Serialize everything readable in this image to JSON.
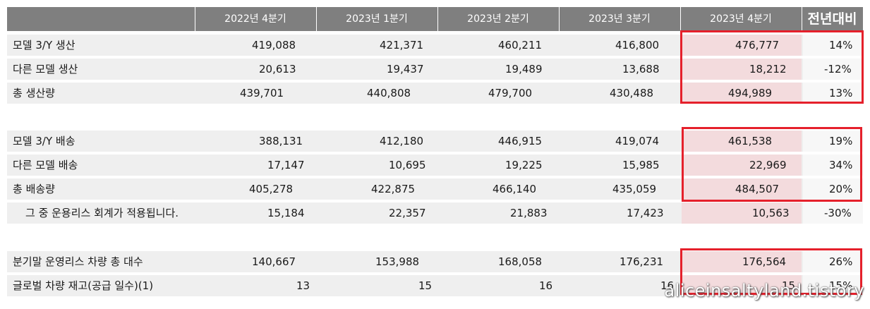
{
  "header": {
    "columns": [
      "2022년 4분기",
      "2023년 1분기",
      "2023년 2분기",
      "2023년 3분기",
      "2023년 4분기"
    ],
    "yoy": "전년대비"
  },
  "groups": [
    {
      "rows": [
        {
          "label": "모델 3/Y 생산",
          "values": [
            "419,088",
            "421,371",
            "460,211",
            "416,800",
            "476,777"
          ],
          "yoy": "14%"
        },
        {
          "label": "다른 모델 생산",
          "values": [
            "20,613",
            "19,437",
            "19,489",
            "13,688",
            "18,212"
          ],
          "yoy": "-12%"
        },
        {
          "label": "총 생산량",
          "values": [
            "439,701",
            "440,808",
            "479,700",
            "430,488",
            "494,989"
          ],
          "yoy": "13%"
        }
      ]
    },
    {
      "rows": [
        {
          "label": "모델 3/Y 배송",
          "values": [
            "388,131",
            "412,180",
            "446,915",
            "419,074",
            "461,538"
          ],
          "yoy": "19%"
        },
        {
          "label": "다른 모델 배송",
          "values": [
            "17,147",
            "10,695",
            "19,225",
            "15,985",
            "22,969"
          ],
          "yoy": "34%"
        },
        {
          "label": "총 배송량",
          "values": [
            "405,278",
            "422,875",
            "466,140",
            "435,059",
            "484,507"
          ],
          "yoy": "20%"
        },
        {
          "label": "그 중 운용리스 회계가 적용됩니다.",
          "values": [
            "15,184",
            "22,357",
            "21,883",
            "17,423",
            "10,563"
          ],
          "yoy": "-30%"
        }
      ]
    },
    {
      "rows": [
        {
          "label": "분기말 운영리스 차량 총 대수",
          "values": [
            "140,667",
            "153,988",
            "168,058",
            "176,231",
            "176,564"
          ],
          "yoy": "26%"
        },
        {
          "label": "글로벌 차량 재고(공급 일수)(1)",
          "values": [
            "13",
            "15",
            "16",
            "16",
            "15"
          ],
          "yoy": "15%"
        }
      ]
    }
  ],
  "watermark": "aliceinsaltyland.tistory",
  "colors": {
    "header_bg": "#7f7f7f",
    "row_bg": "#efefef",
    "highlight_bg": "#f3dbdd",
    "box_border": "#e5202b"
  }
}
